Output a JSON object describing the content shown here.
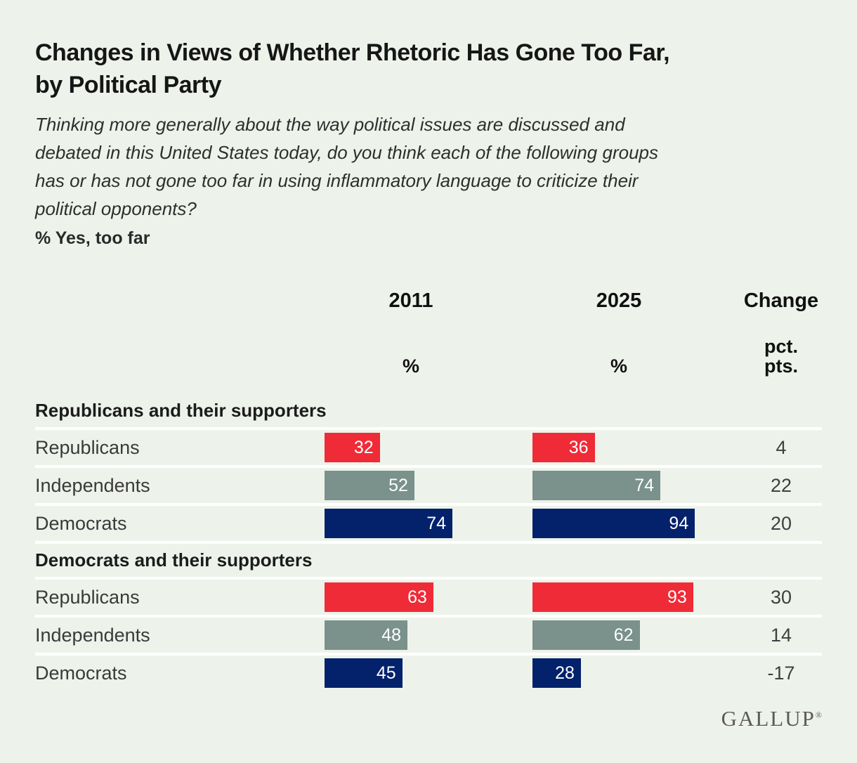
{
  "header": {
    "title_lines": [
      "Changes in Views of Whether Rhetoric Has Gone Too Far,",
      "by Political Party"
    ],
    "subtitle_lines": [
      "Thinking more generally about the way political issues are discussed and",
      "debated in this United States today, do you think each of the following groups",
      "has or has not gone too far in using inflammatory language to criticize their",
      "political opponents?"
    ],
    "metric_note": "% Yes, too far"
  },
  "table": {
    "year1": "2011",
    "year2": "2025",
    "change_label": "Change",
    "unit_percent": "%",
    "unit_change_line1": "pct.",
    "unit_change_line2": "pts."
  },
  "chart_data": {
    "type": "bar",
    "title": "Changes in Views of Whether Rhetoric Has Gone Too Far, by Political Party",
    "subtitle": "Thinking more generally about the way political issues are discussed and debated in this United States today, do you think each of the following groups has or has not gone too far in using inflammatory language to criticize their political opponents?",
    "unit": "% Yes, too far",
    "value_columns": [
      "2011",
      "2025"
    ],
    "change_unit": "pct. pts.",
    "xlim": [
      0,
      100
    ],
    "legend": "none",
    "colors": {
      "republicans": "#ef2b37",
      "independents": "#7a918c",
      "democrats": "#04216b"
    },
    "groups": [
      {
        "group": "Republicans and their supporters",
        "rows": [
          {
            "label": "Republicans",
            "party": "republicans",
            "values": [
              32,
              36
            ],
            "change": 4
          },
          {
            "label": "Independents",
            "party": "independents",
            "values": [
              52,
              74
            ],
            "change": 22
          },
          {
            "label": "Democrats",
            "party": "democrats",
            "values": [
              74,
              94
            ],
            "change": 20
          }
        ]
      },
      {
        "group": "Democrats and their supporters",
        "rows": [
          {
            "label": "Republicans",
            "party": "republicans",
            "values": [
              63,
              93
            ],
            "change": 30
          },
          {
            "label": "Independents",
            "party": "independents",
            "values": [
              48,
              62
            ],
            "change": 14
          },
          {
            "label": "Democrats",
            "party": "democrats",
            "values": [
              45,
              28
            ],
            "change": -17
          }
        ]
      }
    ]
  },
  "footer": {
    "logo_text": "GALLUP",
    "registered_mark": "®"
  }
}
